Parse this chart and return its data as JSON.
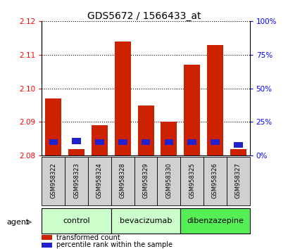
{
  "title": "GDS5672 / 1566433_at",
  "samples": [
    "GSM958322",
    "GSM958323",
    "GSM958324",
    "GSM958328",
    "GSM958329",
    "GSM958330",
    "GSM958325",
    "GSM958326",
    "GSM958327"
  ],
  "transformed_count": [
    2.097,
    2.082,
    2.089,
    2.114,
    2.095,
    2.09,
    2.107,
    2.113,
    2.082
  ],
  "percentile_rank": [
    10,
    11,
    10,
    10,
    10,
    10,
    10,
    10,
    8
  ],
  "y_min": 2.08,
  "y_max": 2.12,
  "y_ticks": [
    2.08,
    2.09,
    2.1,
    2.11,
    2.12
  ],
  "right_y_ticks": [
    0,
    25,
    50,
    75,
    100
  ],
  "right_y_labels": [
    "0%",
    "25%",
    "50%",
    "75%",
    "100%"
  ],
  "bar_color_red": "#cc2200",
  "bar_color_blue": "#2222cc",
  "groups": [
    {
      "label": "control",
      "indices": [
        0,
        1,
        2
      ],
      "color": "#ccffcc"
    },
    {
      "label": "bevacizumab",
      "indices": [
        3,
        4,
        5
      ],
      "color": "#ccffcc"
    },
    {
      "label": "dibenzazepine",
      "indices": [
        6,
        7,
        8
      ],
      "color": "#55ee55"
    }
  ],
  "agent_label": "agent",
  "legend_red": "transformed count",
  "legend_blue": "percentile rank within the sample",
  "bar_width": 0.7,
  "title_fontsize": 10
}
